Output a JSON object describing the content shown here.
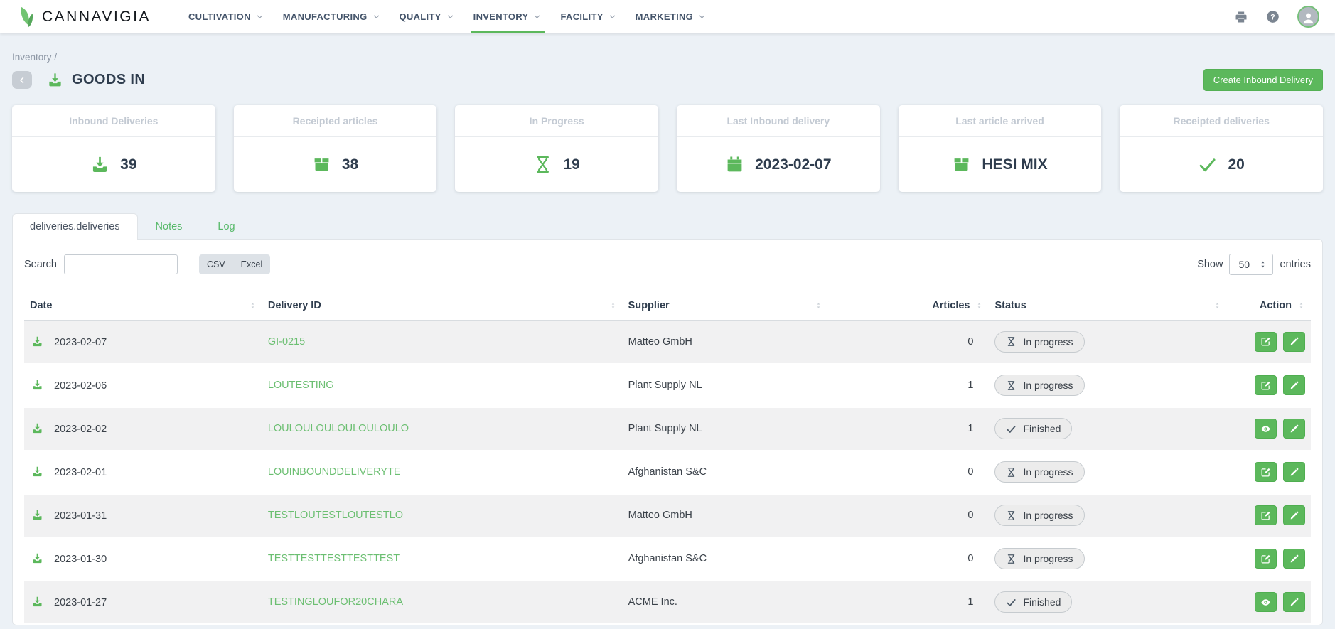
{
  "nav": {
    "brand": "CANNAVIGIA",
    "items": [
      {
        "label": "CULTIVATION",
        "active": false
      },
      {
        "label": "MANUFACTURING",
        "active": false
      },
      {
        "label": "QUALITY",
        "active": false
      },
      {
        "label": "INVENTORY",
        "active": true
      },
      {
        "label": "FACILITY",
        "active": false
      },
      {
        "label": "MARKETING",
        "active": false
      }
    ]
  },
  "header": {
    "breadcrumb": "Inventory /",
    "title": "GOODS IN",
    "create_button": "Create Inbound Delivery"
  },
  "stats": [
    {
      "label": "Inbound Deliveries",
      "value": "39",
      "icon": "download"
    },
    {
      "label": "Receipted articles",
      "value": "38",
      "icon": "box"
    },
    {
      "label": "In Progress",
      "value": "19",
      "icon": "hourglass"
    },
    {
      "label": "Last Inbound delivery",
      "value": "2023-02-07",
      "icon": "calendar"
    },
    {
      "label": "Last article arrived",
      "value": "HESI MIX",
      "icon": "box"
    },
    {
      "label": "Receipted deliveries",
      "value": "20",
      "icon": "check"
    }
  ],
  "tabs": [
    {
      "label": "deliveries.deliveries",
      "active": true
    },
    {
      "label": "Notes",
      "active": false
    },
    {
      "label": "Log",
      "active": false
    }
  ],
  "controls": {
    "search_label": "Search",
    "search_value": "",
    "export_csv": "CSV",
    "export_excel": "Excel",
    "show_label": "Show",
    "page_size": "50",
    "entries_label": "entries"
  },
  "table": {
    "columns": [
      {
        "label": "Date",
        "right": false
      },
      {
        "label": "Delivery ID",
        "right": false
      },
      {
        "label": "Supplier",
        "right": false
      },
      {
        "label": "Articles",
        "right": true
      },
      {
        "label": "Status",
        "right": false
      },
      {
        "label": "Action",
        "right": true
      }
    ],
    "rows": [
      {
        "date": "2023-02-07",
        "delivery_id": "GI-0215",
        "supplier": "Matteo GmbH",
        "articles": "0",
        "status": "In progress",
        "status_icon": "hourglass",
        "actions": [
          "edit-square",
          "pencil"
        ]
      },
      {
        "date": "2023-02-06",
        "delivery_id": "LOUTESTING",
        "supplier": "Plant Supply NL",
        "articles": "1",
        "status": "In progress",
        "status_icon": "hourglass",
        "actions": [
          "edit-square",
          "pencil"
        ]
      },
      {
        "date": "2023-02-02",
        "delivery_id": "LOULOULOULOULOULOULO",
        "supplier": "Plant Supply NL",
        "articles": "1",
        "status": "Finished",
        "status_icon": "check",
        "actions": [
          "eye",
          "pencil"
        ]
      },
      {
        "date": "2023-02-01",
        "delivery_id": "LOUINBOUNDDELIVERYTE",
        "supplier": "Afghanistan S&C",
        "articles": "0",
        "status": "In progress",
        "status_icon": "hourglass",
        "actions": [
          "edit-square",
          "pencil"
        ]
      },
      {
        "date": "2023-01-31",
        "delivery_id": "TESTLOUTESTLOUTESTLO",
        "supplier": "Matteo GmbH",
        "articles": "0",
        "status": "In progress",
        "status_icon": "hourglass",
        "actions": [
          "edit-square",
          "pencil"
        ]
      },
      {
        "date": "2023-01-30",
        "delivery_id": "TESTTESTTESTTESTTEST",
        "supplier": "Afghanistan S&C",
        "articles": "0",
        "status": "In progress",
        "status_icon": "hourglass",
        "actions": [
          "edit-square",
          "pencil"
        ]
      },
      {
        "date": "2023-01-27",
        "delivery_id": "TESTINGLOUFOR20CHARA",
        "supplier": "ACME Inc.",
        "articles": "1",
        "status": "Finished",
        "status_icon": "check",
        "actions": [
          "eye",
          "pencil"
        ]
      }
    ]
  },
  "colors": {
    "accent_green": "#5cb85c",
    "link_green": "#6cbf72",
    "dark_text": "#2f3d4e",
    "page_bg": "#ecf1f6"
  }
}
